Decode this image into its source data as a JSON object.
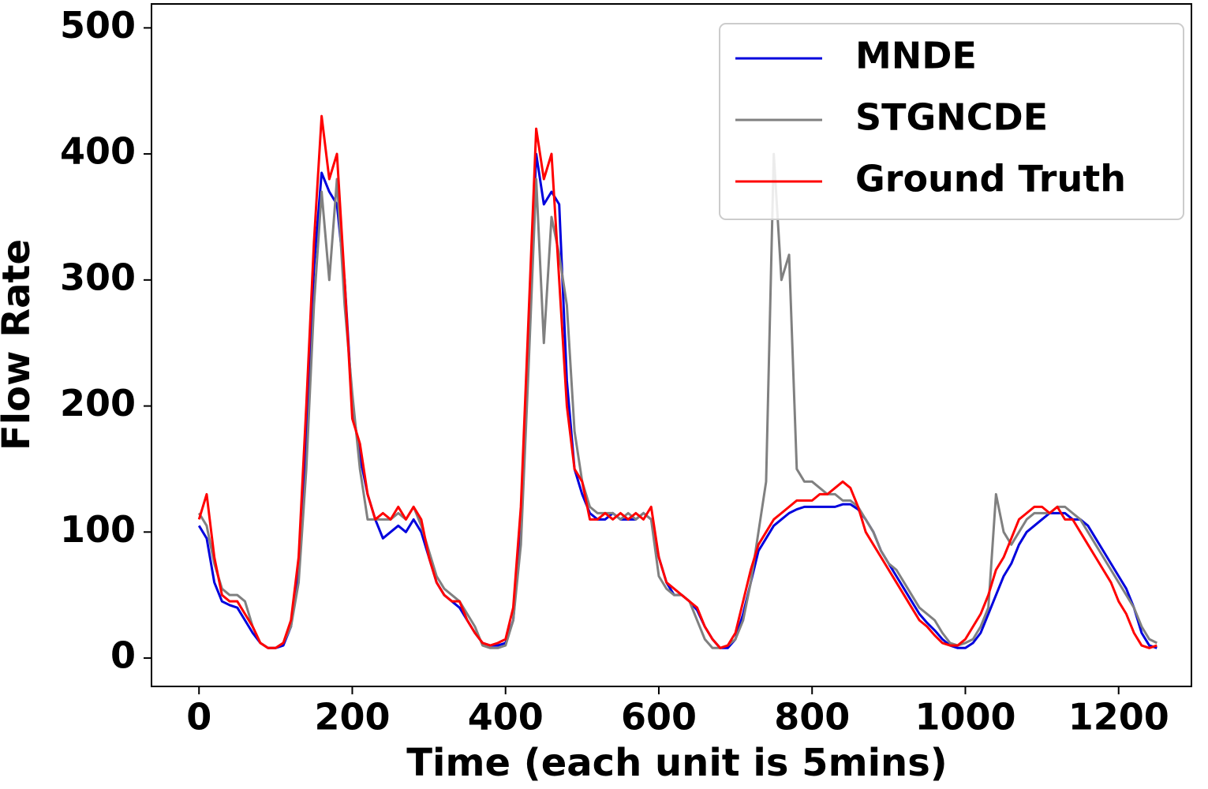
{
  "chart_data": {
    "type": "line",
    "xlabel": "Time (each unit is 5mins)",
    "ylabel": "Flow Rate",
    "xlim": [
      -62,
      1295
    ],
    "ylim": [
      -22.5,
      519
    ],
    "xticks": [
      0,
      200,
      400,
      600,
      800,
      1000,
      1200
    ],
    "yticks": [
      0,
      100,
      200,
      300,
      400,
      500
    ],
    "legend": "upper right",
    "grid": false,
    "x": [
      0,
      10,
      20,
      30,
      40,
      50,
      60,
      70,
      80,
      90,
      100,
      110,
      120,
      130,
      140,
      150,
      160,
      170,
      180,
      190,
      200,
      210,
      220,
      230,
      240,
      250,
      260,
      270,
      280,
      290,
      300,
      310,
      320,
      330,
      340,
      350,
      360,
      370,
      380,
      390,
      400,
      410,
      420,
      430,
      440,
      450,
      460,
      470,
      480,
      490,
      500,
      510,
      520,
      530,
      540,
      550,
      560,
      570,
      580,
      590,
      600,
      610,
      620,
      630,
      640,
      650,
      660,
      670,
      680,
      690,
      700,
      710,
      720,
      730,
      740,
      750,
      760,
      770,
      780,
      790,
      800,
      810,
      820,
      830,
      840,
      850,
      860,
      870,
      880,
      890,
      900,
      910,
      920,
      930,
      940,
      950,
      960,
      970,
      980,
      990,
      1000,
      1010,
      1020,
      1030,
      1040,
      1050,
      1060,
      1070,
      1080,
      1090,
      1100,
      1110,
      1120,
      1130,
      1140,
      1150,
      1160,
      1170,
      1180,
      1190,
      1200,
      1210,
      1220,
      1230,
      1240,
      1250
    ],
    "series": [
      {
        "name": "MNDE",
        "color": "#0000dd",
        "values": [
          105,
          95,
          60,
          45,
          42,
          40,
          30,
          20,
          12,
          8,
          8,
          10,
          25,
          70,
          180,
          310,
          385,
          370,
          360,
          300,
          200,
          160,
          130,
          110,
          95,
          100,
          105,
          100,
          110,
          100,
          80,
          60,
          50,
          45,
          40,
          30,
          20,
          12,
          10,
          10,
          12,
          30,
          100,
          250,
          400,
          360,
          370,
          360,
          220,
          150,
          130,
          115,
          110,
          110,
          115,
          110,
          110,
          110,
          115,
          110,
          80,
          60,
          50,
          50,
          45,
          38,
          25,
          15,
          8,
          8,
          15,
          35,
          60,
          85,
          95,
          105,
          110,
          115,
          118,
          120,
          120,
          120,
          120,
          120,
          122,
          122,
          118,
          110,
          100,
          85,
          75,
          65,
          55,
          45,
          35,
          28,
          22,
          15,
          10,
          8,
          8,
          12,
          20,
          35,
          50,
          65,
          75,
          90,
          100,
          105,
          110,
          115,
          115,
          115,
          110,
          110,
          105,
          95,
          85,
          75,
          65,
          55,
          40,
          20,
          10,
          8
        ]
      },
      {
        "name": "STGNCDE",
        "color": "#808080",
        "values": [
          115,
          105,
          75,
          55,
          50,
          50,
          45,
          25,
          12,
          8,
          8,
          12,
          25,
          60,
          150,
          280,
          370,
          300,
          380,
          280,
          210,
          150,
          110,
          110,
          110,
          110,
          115,
          110,
          120,
          105,
          85,
          65,
          55,
          50,
          45,
          35,
          25,
          10,
          8,
          8,
          10,
          30,
          90,
          230,
          380,
          250,
          350,
          320,
          280,
          180,
          140,
          120,
          115,
          115,
          115,
          110,
          115,
          110,
          115,
          110,
          65,
          55,
          50,
          50,
          45,
          30,
          15,
          8,
          8,
          10,
          15,
          30,
          60,
          100,
          140,
          400,
          300,
          320,
          150,
          140,
          140,
          135,
          130,
          130,
          125,
          125,
          120,
          110,
          100,
          85,
          75,
          70,
          60,
          50,
          40,
          35,
          30,
          20,
          12,
          10,
          12,
          15,
          25,
          40,
          130,
          100,
          90,
          100,
          110,
          115,
          115,
          115,
          120,
          120,
          115,
          110,
          100,
          90,
          80,
          70,
          60,
          50,
          40,
          25,
          15,
          12
        ]
      },
      {
        "name": "Ground Truth",
        "color": "#ff0000",
        "values": [
          110,
          130,
          80,
          50,
          45,
          45,
          35,
          25,
          12,
          8,
          8,
          12,
          30,
          80,
          200,
          330,
          430,
          380,
          400,
          300,
          190,
          170,
          130,
          110,
          115,
          110,
          120,
          110,
          120,
          110,
          80,
          60,
          50,
          45,
          45,
          30,
          20,
          12,
          10,
          12,
          15,
          40,
          120,
          270,
          420,
          380,
          400,
          300,
          200,
          150,
          140,
          110,
          110,
          115,
          110,
          115,
          110,
          115,
          110,
          120,
          80,
          60,
          55,
          50,
          45,
          40,
          25,
          15,
          8,
          10,
          20,
          45,
          70,
          90,
          100,
          110,
          115,
          120,
          125,
          125,
          125,
          130,
          130,
          135,
          140,
          135,
          120,
          100,
          90,
          80,
          70,
          60,
          50,
          40,
          30,
          25,
          18,
          12,
          10,
          10,
          15,
          25,
          35,
          50,
          70,
          80,
          95,
          110,
          115,
          120,
          120,
          115,
          120,
          110,
          110,
          100,
          90,
          80,
          70,
          60,
          45,
          35,
          20,
          10,
          8,
          10
        ]
      }
    ]
  }
}
